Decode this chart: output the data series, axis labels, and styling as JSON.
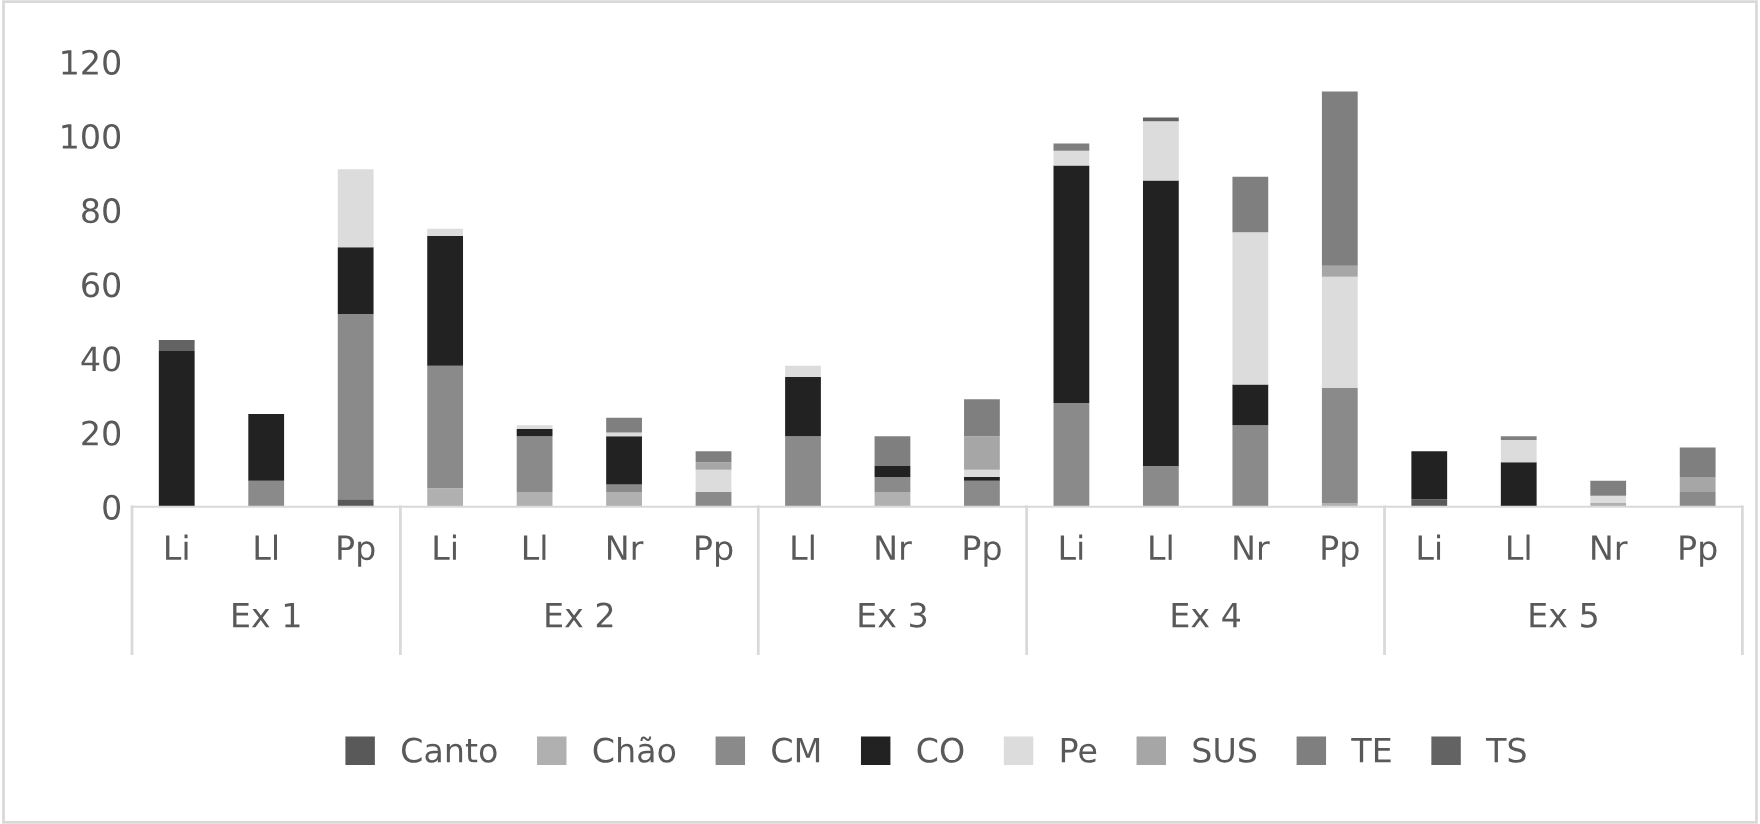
{
  "chart_data": {
    "type": "bar",
    "stacked": true,
    "categories": [
      "Li",
      "Ll",
      "Pp",
      "Li",
      "Ll",
      "Nr",
      "Pp",
      "Ll",
      "Nr",
      "Pp",
      "Li",
      "Ll",
      "Nr",
      "Pp",
      "Li",
      "Ll",
      "Nr",
      "Pp"
    ],
    "annotations": [
      "Ex 1",
      "Ex 2",
      "Ex 3",
      "Ex 4",
      "Ex 5"
    ],
    "series": [
      {
        "name": "Canto",
        "color": "#595959",
        "values": [
          null,
          null,
          2,
          null,
          null,
          null,
          null,
          null,
          null,
          null,
          null,
          null,
          null,
          null,
          2,
          null,
          null,
          null
        ]
      },
      {
        "name": "Chão",
        "color": "#b0b0b0",
        "values": [
          null,
          null,
          null,
          5,
          4,
          4,
          null,
          null,
          4,
          null,
          null,
          null,
          null,
          1,
          null,
          null,
          1,
          null
        ]
      },
      {
        "name": "CM",
        "color": "#8a8a8a",
        "values": [
          null,
          7,
          50,
          33,
          15,
          2,
          4,
          19,
          4,
          7,
          28,
          11,
          22,
          31,
          null,
          null,
          null,
          4
        ]
      },
      {
        "name": "CO",
        "color": "#222222",
        "values": [
          42,
          18,
          18,
          35,
          2,
          13,
          null,
          16,
          3,
          1,
          64,
          77,
          11,
          null,
          13,
          12,
          null,
          null
        ]
      },
      {
        "name": "Pe",
        "color": "#dcdcdc",
        "values": [
          null,
          null,
          21,
          2,
          1,
          1,
          6,
          3,
          null,
          2,
          4,
          16,
          41,
          30,
          null,
          6,
          2,
          null
        ]
      },
      {
        "name": "SUS",
        "color": "#a6a6a6",
        "values": [
          null,
          null,
          null,
          null,
          null,
          null,
          2,
          null,
          null,
          9,
          null,
          null,
          null,
          3,
          null,
          null,
          null,
          4
        ]
      },
      {
        "name": "TE",
        "color": "#7f7f7f",
        "values": [
          null,
          null,
          null,
          null,
          null,
          4,
          3,
          null,
          8,
          10,
          2,
          null,
          15,
          47,
          null,
          1,
          4,
          8
        ]
      },
      {
        "name": "TS",
        "color": "#636363",
        "values": [
          3,
          null,
          null,
          null,
          null,
          null,
          null,
          null,
          null,
          null,
          null,
          1,
          null,
          null,
          null,
          null,
          null,
          null
        ]
      }
    ],
    "ylim": [
      0,
      120
    ],
    "yticks": [
      0,
      20,
      40,
      60,
      80,
      100,
      120
    ],
    "grid": false,
    "legend": "bottom"
  }
}
